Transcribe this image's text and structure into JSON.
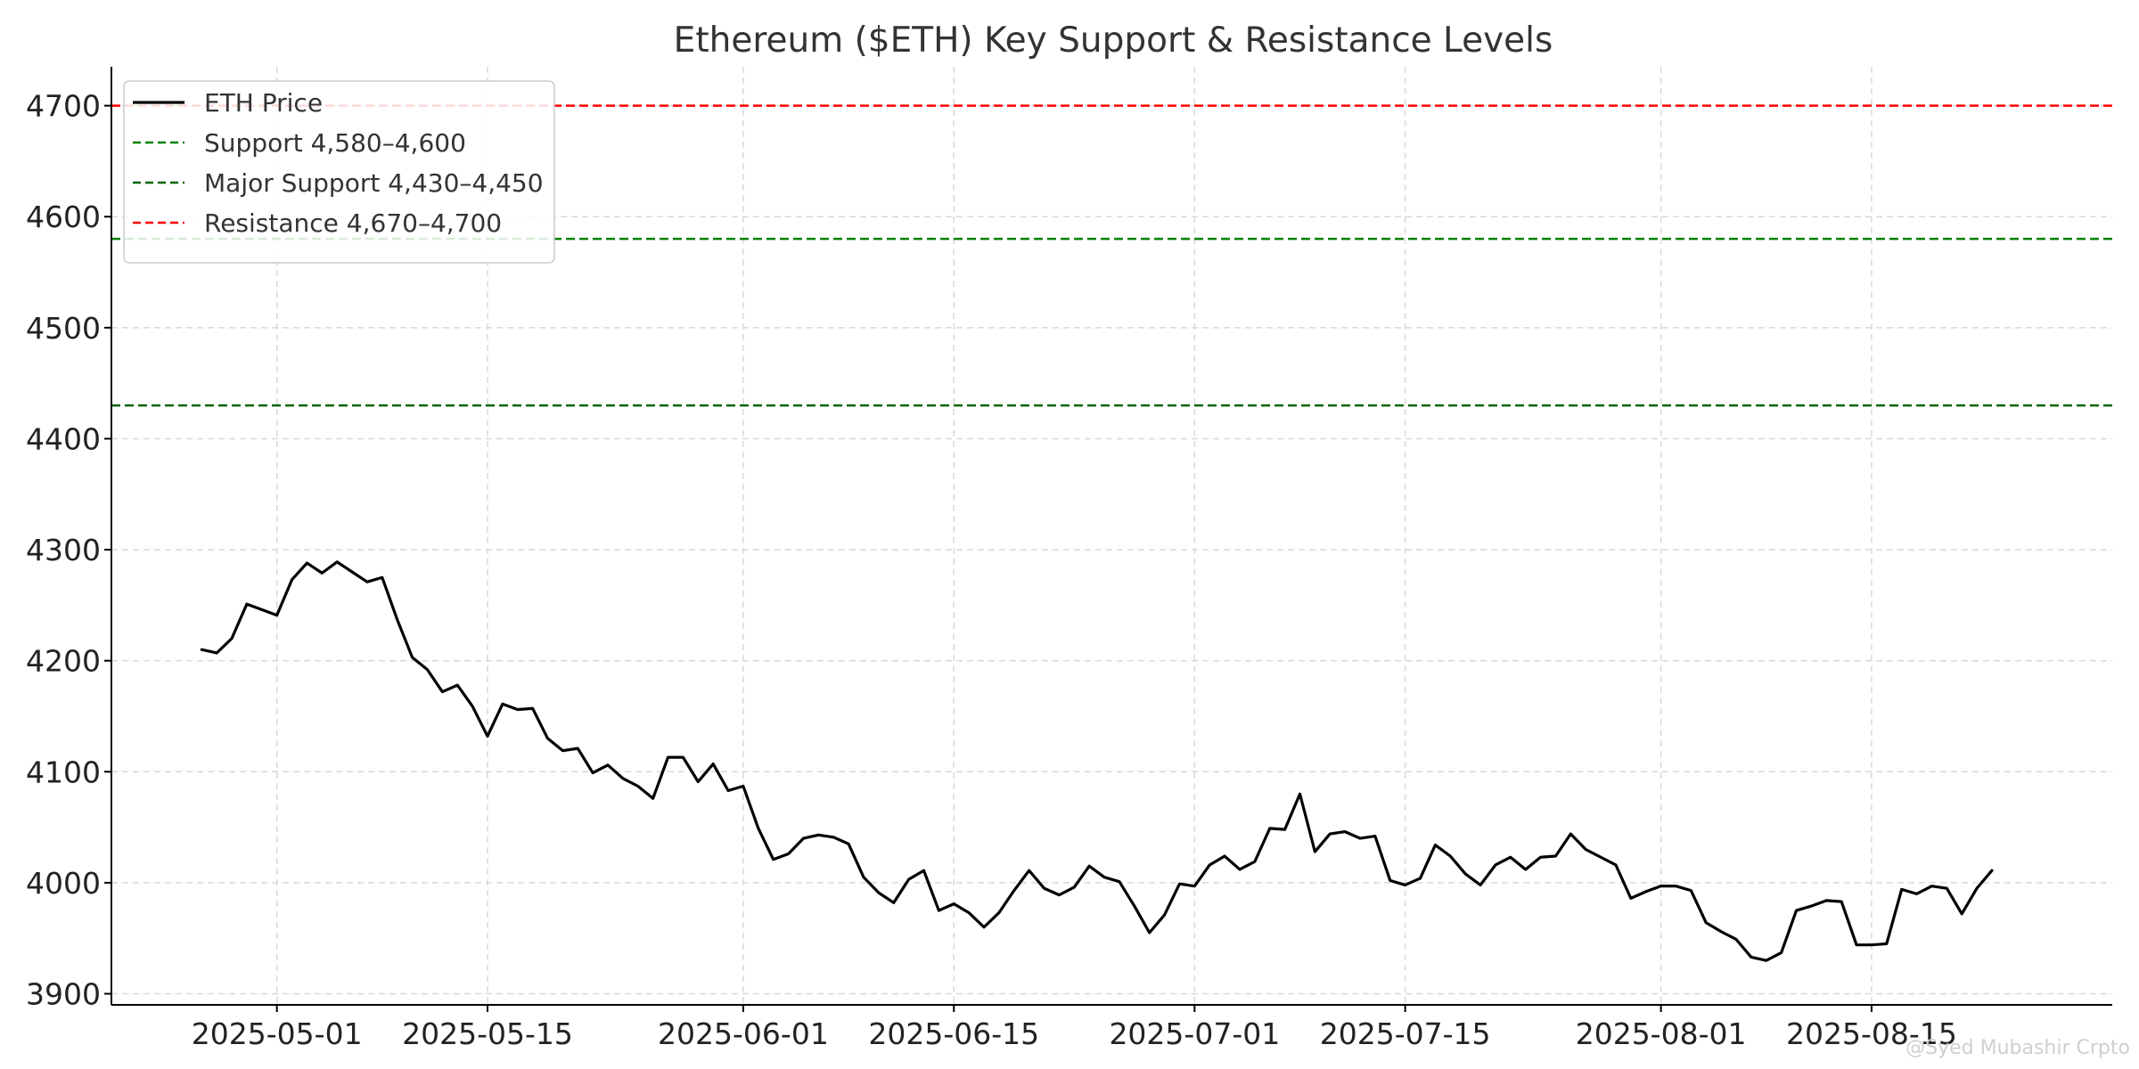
{
  "chart_data": {
    "type": "line",
    "title": "Ethereum ($ETH) Key Support & Resistance Levels",
    "xlabel": "",
    "ylabel": "",
    "ylim": [
      3890,
      4735
    ],
    "xlim": [
      "2025-04-20",
      "2025-08-31"
    ],
    "yticks": [
      3900,
      4000,
      4100,
      4200,
      4300,
      4400,
      4500,
      4600,
      4700
    ],
    "xticks": [
      "2025-05-01",
      "2025-05-15",
      "2025-06-01",
      "2025-06-15",
      "2025-07-01",
      "2025-07-15",
      "2025-08-01",
      "2025-08-15"
    ],
    "grid": true,
    "legend_position": "top-left",
    "watermark": "@Syed Mubashir Crpto",
    "series": [
      {
        "name": "ETH Price",
        "color": "#000000",
        "style": "solid",
        "start_date": "2025-04-26",
        "values": [
          4210,
          4207,
          4220,
          4251,
          4246,
          4241,
          4273,
          4288,
          4279,
          4289,
          4280,
          4271,
          4275,
          4237,
          4203,
          4192,
          4172,
          4178,
          4159,
          4132,
          4161,
          4156,
          4157,
          4130,
          4119,
          4121,
          4099,
          4106,
          4094,
          4087,
          4076,
          4113,
          4113,
          4091,
          4107,
          4083,
          4087,
          4049,
          4021,
          4026,
          4040,
          4043,
          4041,
          4035,
          4005,
          3991,
          3982,
          4003,
          4011,
          3975,
          3981,
          3973,
          3960,
          3973,
          3993,
          4011,
          3995,
          3989,
          3996,
          4015,
          4005,
          4001,
          3979,
          3955,
          3971,
          3999,
          3997,
          4016,
          4024,
          4012,
          4019,
          4049,
          4048,
          4080,
          4028,
          4044,
          4046,
          4040,
          4042,
          4002,
          3998,
          4004,
          4034,
          4024,
          4008,
          3998,
          4016,
          4023,
          4012,
          4023,
          4024,
          4044,
          4030,
          4023,
          4016,
          3986,
          3992,
          3997,
          3997,
          3993,
          3964,
          3956,
          3949,
          3933,
          3930,
          3937,
          3975,
          3979,
          3984,
          3983,
          3944,
          3944,
          3945,
          3994,
          3990,
          3997,
          3995,
          3972,
          3995,
          4011
        ]
      }
    ],
    "levels": [
      {
        "name": "Support 4,580–4,600",
        "legend_label": "Support $4,580–4,600",
        "value": 4580,
        "color": "#008000",
        "style": "dashed"
      },
      {
        "name": "Major Support 4,430–4,450",
        "legend_label": "Major Support $4,430–4,450",
        "value": 4430,
        "color": "#006400",
        "style": "dashed"
      },
      {
        "name": "Resistance 4,670–4,700",
        "legend_label": "Resistance $4,670–4,700",
        "value": 4700,
        "color": "#ff0000",
        "style": "dashed"
      }
    ]
  }
}
